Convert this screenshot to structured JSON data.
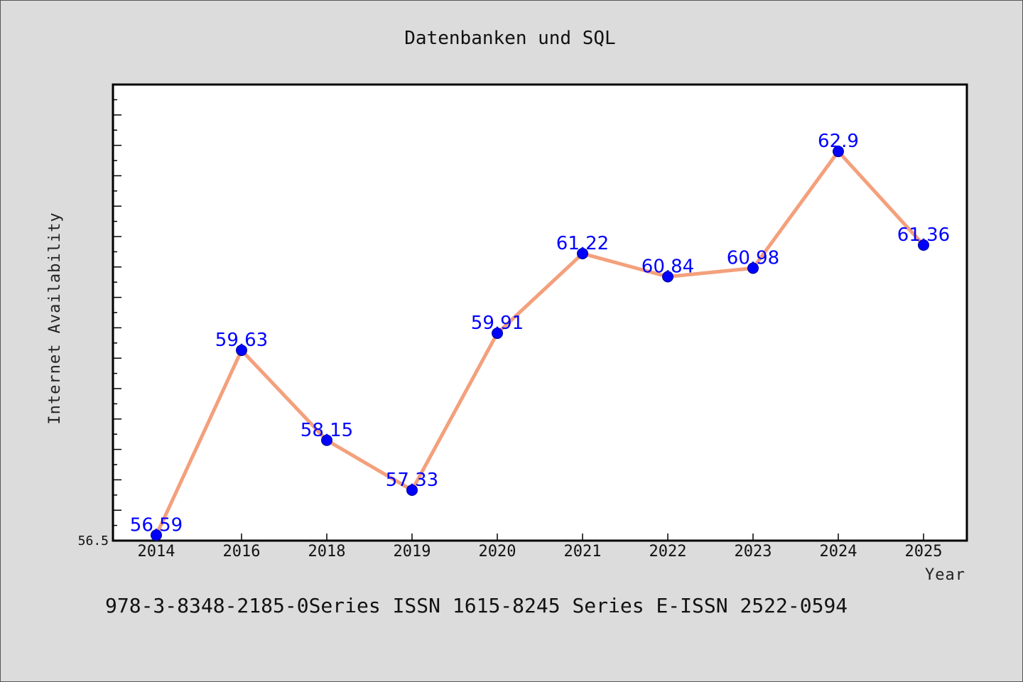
{
  "chart_data": {
    "type": "line",
    "title": "Datenbanken und SQL",
    "xlabel": "Year",
    "ylabel": "Internet Availability",
    "categories": [
      "2014",
      "2016",
      "2018",
      "2019",
      "2020",
      "2021",
      "2022",
      "2023",
      "2024",
      "2025"
    ],
    "series": [
      {
        "values": [
          56.59,
          59.63,
          58.15,
          57.33,
          59.91,
          61.22,
          60.84,
          60.98,
          62.9,
          61.36
        ],
        "labels": [
          "56.59",
          "59.63",
          "58.15",
          "57.33",
          "59.91",
          "61.22",
          "60.84",
          "60.98",
          "62.9",
          "61.36"
        ]
      }
    ],
    "ylim": [
      56.5,
      64.0
    ],
    "ymin_label": "56.5",
    "grid": false,
    "line_color": "#f4a07c",
    "marker_color": "#0000ff"
  },
  "caption": "978-3-8348-2185-0Series ISSN 1615-8245 Series E-ISSN 2522-0594"
}
